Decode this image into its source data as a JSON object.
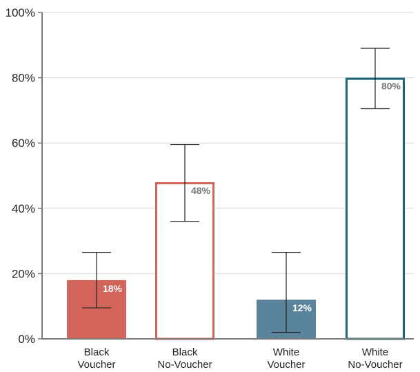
{
  "chart_data": {
    "type": "bar",
    "categories": [
      {
        "line1": "Black",
        "line2": "Voucher"
      },
      {
        "line1": "Black",
        "line2": "No-Voucher"
      },
      {
        "line1": "White",
        "line2": "Voucher"
      },
      {
        "line1": "White",
        "line2": "No-Voucher"
      }
    ],
    "values": [
      18,
      48,
      12,
      80
    ],
    "error_low": [
      9.5,
      36,
      2,
      70.5
    ],
    "error_high": [
      26.5,
      59.5,
      26.5,
      89
    ],
    "value_labels": [
      "18%",
      "48%",
      "12%",
      "80%"
    ],
    "styles": [
      {
        "fill": "#d2645a",
        "stroke": "#d2645a",
        "label_color": "#ffffff"
      },
      {
        "fill": "#ffffff",
        "stroke": "#d2645a",
        "label_color": "#777777"
      },
      {
        "fill": "#5a849b",
        "stroke": "#5a849b",
        "label_color": "#ffffff"
      },
      {
        "fill": "#ffffff",
        "stroke": "#1e6474",
        "label_color": "#777777"
      }
    ],
    "yticks": [
      {
        "value": 0,
        "label": "0%"
      },
      {
        "value": 20,
        "label": "20%"
      },
      {
        "value": 40,
        "label": "40%"
      },
      {
        "value": 60,
        "label": "60%"
      },
      {
        "value": 80,
        "label": "80%"
      },
      {
        "value": 100,
        "label": "100%"
      }
    ],
    "ylim": [
      0,
      100
    ],
    "grid": true,
    "title": "",
    "xlabel": "",
    "ylabel": ""
  }
}
